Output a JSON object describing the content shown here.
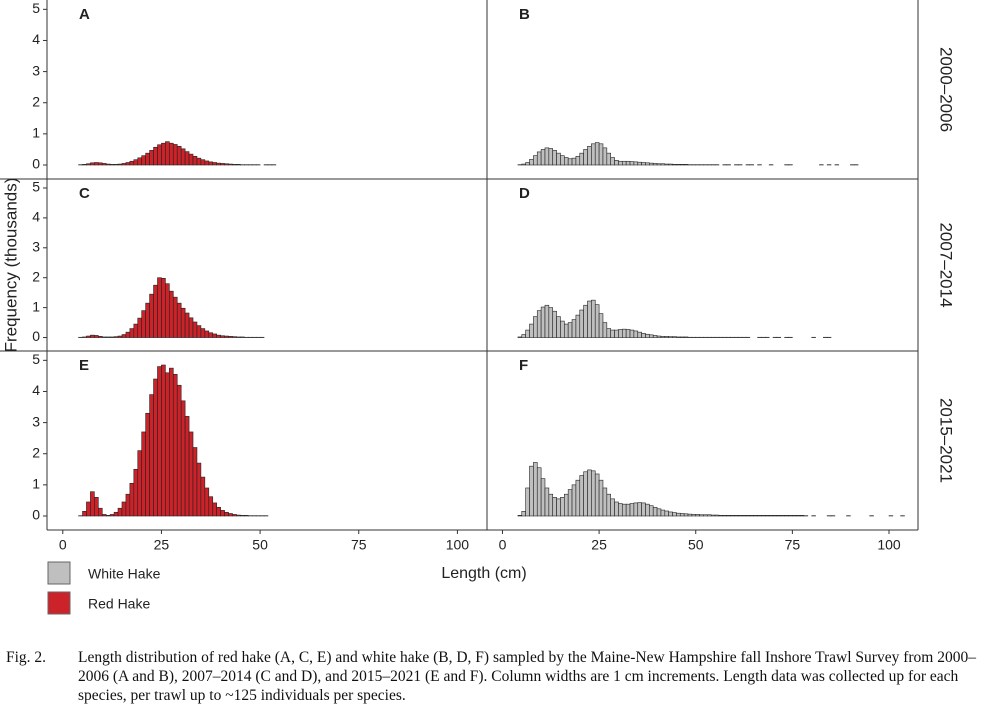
{
  "axes": {
    "ylabel": "Frequency (thousands)",
    "xlabel": "Length (cm)"
  },
  "caption": {
    "label": "Fig. 2.",
    "text": "Length distribution of red hake (A, C, E) and white hake (B, D, F) sampled by the Maine-New Hampshire fall Inshore Trawl Survey from 2000–2006 (A and B), 2007–2014 (C and D), and 2015–2021 (E and F). Column widths are 1 cm increments. Length data was collected up for each species, per trawl up to ~125 individuals per species."
  },
  "chart_data": [
    {
      "type": "histogram",
      "title": "A",
      "xlim": [
        -4,
        107.5
      ],
      "ylim": [
        -0.45,
        5.3
      ],
      "yticks": [
        0,
        1,
        2,
        3,
        4,
        5
      ],
      "bins": [
        4,
        5,
        6,
        7,
        8,
        9,
        10,
        11,
        12,
        13,
        14,
        15,
        16,
        17,
        18,
        19,
        20,
        21,
        22,
        23,
        24,
        25,
        26,
        27,
        28,
        29,
        30,
        31,
        32,
        33,
        34,
        35,
        36,
        37,
        38,
        39,
        40,
        41,
        42,
        43,
        44,
        45,
        46,
        47,
        48,
        49,
        50,
        51,
        52,
        53,
        54
      ],
      "series": [
        {
          "name": "Red Hake",
          "color": "#cc2229",
          "values": [
            0.01,
            0.02,
            0.04,
            0.07,
            0.08,
            0.07,
            0.05,
            0.03,
            0.02,
            0.02,
            0.03,
            0.05,
            0.08,
            0.12,
            0.17,
            0.23,
            0.3,
            0.38,
            0.47,
            0.57,
            0.65,
            0.7,
            0.75,
            0.7,
            0.66,
            0.6,
            0.52,
            0.43,
            0.35,
            0.28,
            0.22,
            0.17,
            0.13,
            0.1,
            0.08,
            0.06,
            0.05,
            0.04,
            0.03,
            0.02,
            0.02,
            0.01,
            0.01,
            0.01,
            0.01,
            0.01,
            0,
            0.01,
            0.01,
            0.01
          ]
        }
      ]
    },
    {
      "type": "histogram",
      "title": "B",
      "facet_label": "2000–2006",
      "xlim": [
        -4,
        107.5
      ],
      "ylim": [
        -0.45,
        5.3
      ],
      "bins": [
        4,
        5,
        6,
        7,
        8,
        9,
        10,
        11,
        12,
        13,
        14,
        15,
        16,
        17,
        18,
        19,
        20,
        21,
        22,
        23,
        24,
        25,
        26,
        27,
        28,
        29,
        30,
        31,
        32,
        33,
        34,
        35,
        36,
        37,
        38,
        39,
        40,
        41,
        42,
        43,
        44,
        45,
        46,
        47,
        48,
        49,
        50,
        51,
        52,
        53,
        54,
        55,
        56,
        57,
        58,
        59,
        60,
        61,
        62,
        63,
        64,
        65,
        66,
        67,
        68,
        69,
        70,
        71,
        72,
        73,
        74,
        75,
        76,
        77,
        78,
        79,
        80,
        81,
        82,
        83,
        84,
        85,
        86,
        87,
        88,
        89,
        90,
        91,
        92
      ],
      "series": [
        {
          "name": "White Hake",
          "color": "#bfbfbf",
          "values": [
            0.01,
            0.03,
            0.08,
            0.18,
            0.3,
            0.42,
            0.5,
            0.55,
            0.53,
            0.47,
            0.38,
            0.3,
            0.24,
            0.2,
            0.22,
            0.28,
            0.38,
            0.5,
            0.6,
            0.68,
            0.72,
            0.68,
            0.55,
            0.38,
            0.24,
            0.15,
            0.12,
            0.12,
            0.12,
            0.11,
            0.1,
            0.09,
            0.08,
            0.07,
            0.06,
            0.05,
            0.04,
            0.04,
            0.03,
            0.03,
            0.02,
            0.02,
            0.02,
            0.02,
            0.01,
            0.01,
            0.01,
            0.01,
            0.01,
            0.01,
            0.01,
            0.01,
            0,
            0.01,
            0.01,
            0,
            0.01,
            0.01,
            0,
            0.01,
            0.01,
            0,
            0.01,
            0,
            0,
            0.01,
            0,
            0,
            0,
            0.01,
            0.01,
            0,
            0,
            0,
            0,
            0,
            0,
            0,
            0.01,
            0,
            0.01,
            0,
            0.01,
            0,
            0,
            0,
            0.01,
            0.01
          ]
        }
      ]
    },
    {
      "type": "histogram",
      "title": "C",
      "xlim": [
        -4,
        107.5
      ],
      "ylim": [
        -0.45,
        5.3
      ],
      "yticks": [
        0,
        1,
        2,
        3,
        4,
        5
      ],
      "bins": [
        4,
        5,
        6,
        7,
        8,
        9,
        10,
        11,
        12,
        13,
        14,
        15,
        16,
        17,
        18,
        19,
        20,
        21,
        22,
        23,
        24,
        25,
        26,
        27,
        28,
        29,
        30,
        31,
        32,
        33,
        34,
        35,
        36,
        37,
        38,
        39,
        40,
        41,
        42,
        43,
        44,
        45,
        46,
        47,
        48,
        49,
        50,
        51
      ],
      "series": [
        {
          "name": "Red Hake",
          "color": "#cc2229",
          "values": [
            0.01,
            0.02,
            0.05,
            0.08,
            0.07,
            0.04,
            0.02,
            0.02,
            0.02,
            0.03,
            0.05,
            0.1,
            0.18,
            0.3,
            0.45,
            0.65,
            0.9,
            1.15,
            1.45,
            1.75,
            2.0,
            1.98,
            1.8,
            1.55,
            1.35,
            1.15,
            0.98,
            0.82,
            0.66,
            0.52,
            0.4,
            0.3,
            0.22,
            0.16,
            0.12,
            0.08,
            0.06,
            0.05,
            0.04,
            0.03,
            0.02,
            0.02,
            0.01,
            0.01,
            0.01,
            0.01,
            0.01
          ]
        }
      ]
    },
    {
      "type": "histogram",
      "title": "D",
      "facet_label": "2007–2014",
      "xlim": [
        -4,
        107.5
      ],
      "ylim": [
        -0.45,
        5.3
      ],
      "bins": [
        4,
        5,
        6,
        7,
        8,
        9,
        10,
        11,
        12,
        13,
        14,
        15,
        16,
        17,
        18,
        19,
        20,
        21,
        22,
        23,
        24,
        25,
        26,
        27,
        28,
        29,
        30,
        31,
        32,
        33,
        34,
        35,
        36,
        37,
        38,
        39,
        40,
        41,
        42,
        43,
        44,
        45,
        46,
        47,
        48,
        49,
        50,
        51,
        52,
        53,
        54,
        55,
        56,
        57,
        58,
        59,
        60,
        61,
        62,
        63,
        64,
        65,
        66,
        67,
        68,
        69,
        70,
        71,
        72,
        73,
        74,
        75,
        76,
        77,
        78,
        79,
        80,
        81,
        82,
        83,
        84,
        85
      ],
      "series": [
        {
          "name": "White Hake",
          "color": "#bfbfbf",
          "values": [
            0.02,
            0.1,
            0.25,
            0.45,
            0.7,
            0.9,
            1.02,
            1.08,
            1.0,
            0.88,
            0.7,
            0.55,
            0.45,
            0.5,
            0.6,
            0.75,
            0.92,
            1.08,
            1.22,
            1.25,
            1.1,
            0.8,
            0.5,
            0.3,
            0.25,
            0.25,
            0.27,
            0.28,
            0.27,
            0.25,
            0.22,
            0.18,
            0.14,
            0.11,
            0.09,
            0.07,
            0.05,
            0.04,
            0.04,
            0.03,
            0.03,
            0.02,
            0.02,
            0.02,
            0.01,
            0.01,
            0.01,
            0.01,
            0.01,
            0.01,
            0.01,
            0.01,
            0.01,
            0.01,
            0.01,
            0.01,
            0.01,
            0.01,
            0.01,
            0.01,
            0,
            0,
            0.01,
            0.01,
            0.01,
            0,
            0.01,
            0.01,
            0,
            0.01,
            0.01,
            0,
            0,
            0,
            0,
            0,
            0.01,
            0,
            0,
            0.01,
            0.01
          ]
        }
      ]
    },
    {
      "type": "histogram",
      "title": "E",
      "xlim": [
        -4,
        107.5
      ],
      "ylim": [
        -0.45,
        5.3
      ],
      "yticks": [
        0,
        1,
        2,
        3,
        4,
        5
      ],
      "xticks": [
        0,
        25,
        50,
        75,
        100
      ],
      "bins": [
        4,
        5,
        6,
        7,
        8,
        9,
        10,
        11,
        12,
        13,
        14,
        15,
        16,
        17,
        18,
        19,
        20,
        21,
        22,
        23,
        24,
        25,
        26,
        27,
        28,
        29,
        30,
        31,
        32,
        33,
        34,
        35,
        36,
        37,
        38,
        39,
        40,
        41,
        42,
        43,
        44,
        45,
        46,
        47,
        48,
        49,
        50,
        51,
        52
      ],
      "series": [
        {
          "name": "Red Hake",
          "color": "#cc2229",
          "values": [
            0.01,
            0.15,
            0.45,
            0.78,
            0.6,
            0.25,
            0.05,
            0.02,
            0.05,
            0.12,
            0.25,
            0.45,
            0.7,
            1.05,
            1.5,
            2.1,
            2.7,
            3.3,
            3.9,
            4.4,
            4.8,
            4.85,
            4.6,
            4.75,
            4.55,
            4.2,
            3.7,
            3.2,
            2.7,
            2.2,
            1.7,
            1.25,
            0.9,
            0.62,
            0.42,
            0.28,
            0.18,
            0.12,
            0.08,
            0.05,
            0.03,
            0.02,
            0.02,
            0.01,
            0.01,
            0.01,
            0.01,
            0.01
          ]
        }
      ]
    },
    {
      "type": "histogram",
      "title": "F",
      "facet_label": "2015–2021",
      "xlim": [
        -4,
        107.5
      ],
      "ylim": [
        -0.45,
        5.3
      ],
      "xticks": [
        0,
        25,
        50,
        75,
        100
      ],
      "bins": [
        4,
        5,
        6,
        7,
        8,
        9,
        10,
        11,
        12,
        13,
        14,
        15,
        16,
        17,
        18,
        19,
        20,
        21,
        22,
        23,
        24,
        25,
        26,
        27,
        28,
        29,
        30,
        31,
        32,
        33,
        34,
        35,
        36,
        37,
        38,
        39,
        40,
        41,
        42,
        43,
        44,
        45,
        46,
        47,
        48,
        49,
        50,
        51,
        52,
        53,
        54,
        55,
        56,
        57,
        58,
        59,
        60,
        61,
        62,
        63,
        64,
        65,
        66,
        67,
        68,
        69,
        70,
        71,
        72,
        73,
        74,
        75,
        76,
        77,
        78,
        79,
        80,
        81,
        82,
        83,
        84,
        85,
        86,
        87,
        88,
        89,
        90,
        91,
        92,
        93,
        94,
        95,
        96,
        97,
        98,
        99,
        100,
        101,
        102,
        103,
        104
      ],
      "series": [
        {
          "name": "White Hake",
          "color": "#bfbfbf",
          "values": [
            0.02,
            0.15,
            0.9,
            1.6,
            1.72,
            1.55,
            1.2,
            0.9,
            0.7,
            0.6,
            0.55,
            0.6,
            0.7,
            0.85,
            1.0,
            1.15,
            1.3,
            1.42,
            1.48,
            1.45,
            1.35,
            1.15,
            0.9,
            0.7,
            0.55,
            0.45,
            0.4,
            0.38,
            0.38,
            0.4,
            0.42,
            0.43,
            0.42,
            0.38,
            0.33,
            0.28,
            0.23,
            0.19,
            0.16,
            0.13,
            0.11,
            0.09,
            0.08,
            0.07,
            0.06,
            0.05,
            0.05,
            0.04,
            0.04,
            0.04,
            0.03,
            0.03,
            0.02,
            0.02,
            0.02,
            0.02,
            0.02,
            0.02,
            0.02,
            0.02,
            0.02,
            0.02,
            0.02,
            0.02,
            0.02,
            0.02,
            0.02,
            0.02,
            0.02,
            0.02,
            0.02,
            0.02,
            0.02,
            0.02,
            0.01,
            0,
            0.01,
            0,
            0,
            0,
            0.01,
            0.01,
            0,
            0,
            0,
            0.01,
            0,
            0,
            0,
            0,
            0,
            0.01,
            0,
            0,
            0,
            0,
            0.01,
            0,
            0,
            0.01
          ]
        }
      ]
    }
  ]
}
